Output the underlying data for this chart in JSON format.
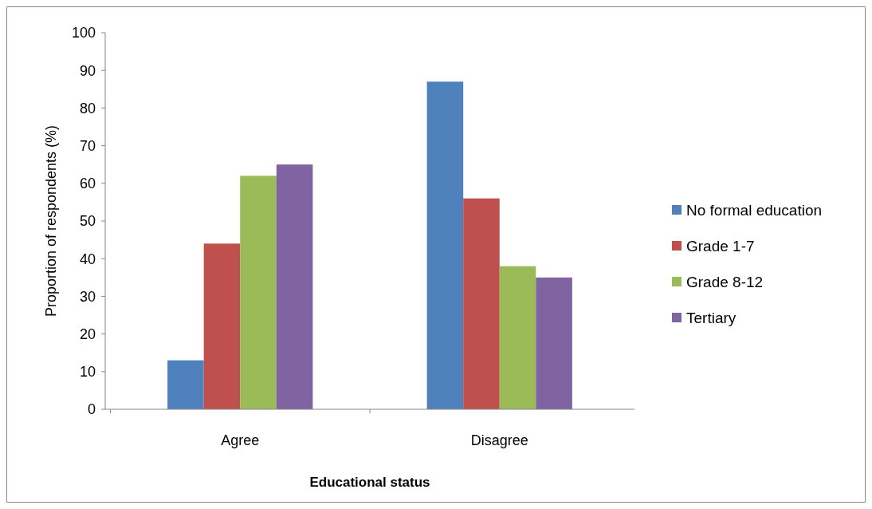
{
  "chart_data": {
    "type": "bar",
    "xlabel": "Educational status",
    "ylabel": "Proportion of respondents (%)",
    "categories": [
      "Agree",
      "Disagree"
    ],
    "series": [
      {
        "name": "No formal education",
        "color": "#4f81bd",
        "values": [
          13,
          87
        ]
      },
      {
        "name": "Grade 1-7",
        "color": "#c0504d",
        "values": [
          44,
          56
        ]
      },
      {
        "name": "Grade 8-12",
        "color": "#9bbb59",
        "values": [
          62,
          38
        ]
      },
      {
        "name": "Tertiary",
        "color": "#8064a2",
        "values": [
          65,
          35
        ]
      }
    ],
    "ylim": [
      0,
      100
    ],
    "yticks": [
      0,
      10,
      20,
      30,
      40,
      50,
      60,
      70,
      80,
      90,
      100
    ],
    "legend": "right"
  }
}
